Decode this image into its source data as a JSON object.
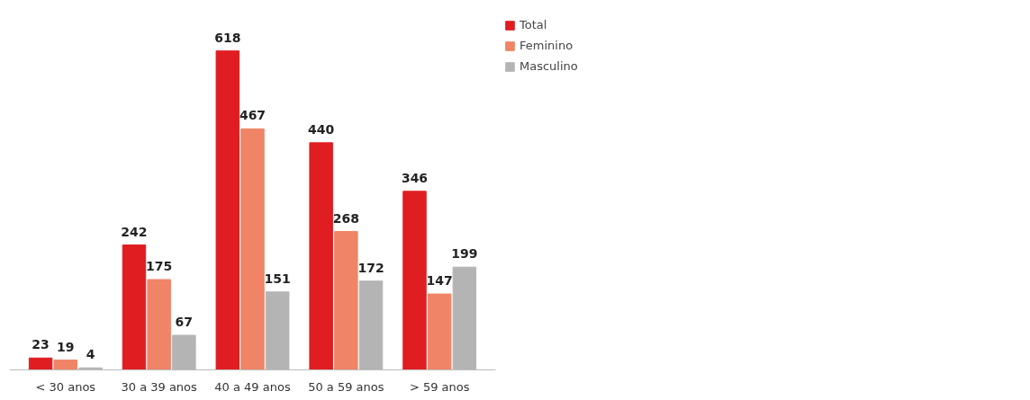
{
  "chart_data": {
    "type": "bar",
    "categories": [
      "< 30 anos",
      "30 a 39 anos",
      "40 a 49 anos",
      "50 a 59 anos",
      "> 59 anos"
    ],
    "series": [
      {
        "name": "Total",
        "color": "#e01e22",
        "values": [
          23,
          242,
          618,
          440,
          346
        ]
      },
      {
        "name": "Feminino",
        "color": "#f08466",
        "values": [
          19,
          175,
          467,
          268,
          147
        ]
      },
      {
        "name": "Masculino",
        "color": "#b4b4b4",
        "values": [
          4,
          67,
          151,
          172,
          199
        ]
      }
    ],
    "data_labels": true,
    "legend": "right",
    "grid": false,
    "tick_labels": "x"
  }
}
